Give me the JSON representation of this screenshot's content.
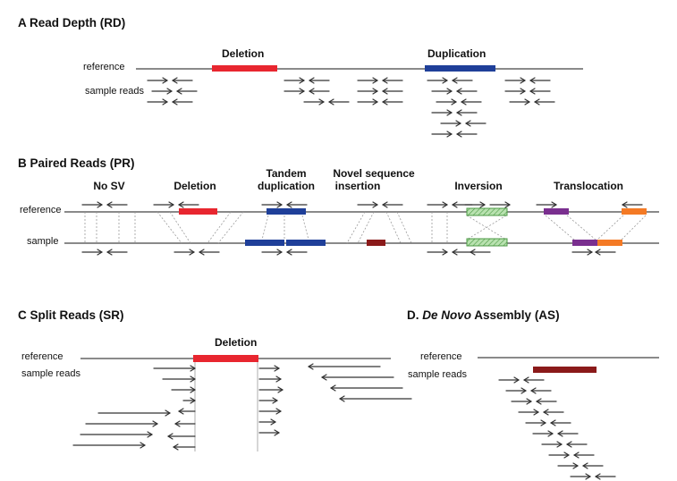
{
  "colors": {
    "deletion": "#e8262f",
    "duplication": "#1f3f99",
    "novel": "#8b1a1a",
    "inversion_fill": "#b9e2b0",
    "inversion_stroke": "#4c9a45",
    "translocation_a": "#7a2f8f",
    "translocation_b": "#f47a25",
    "assembly": "#8b1a1a",
    "line": "#444444",
    "arrow": "#333333"
  },
  "panel_a": {
    "title": "A  Read Depth (RD)",
    "reference_label": "reference",
    "sample_label": "sample reads",
    "deletion_label": "Deletion",
    "duplication_label": "Duplication"
  },
  "panel_b": {
    "title": "B  Paired Reads (PR)",
    "reference_label": "reference",
    "sample_label": "sample",
    "categories": [
      {
        "lines": [
          "No SV"
        ]
      },
      {
        "lines": [
          "Deletion"
        ]
      },
      {
        "lines": [
          "Tandem",
          "duplication"
        ]
      },
      {
        "lines": [
          "Novel sequence",
          "insertion"
        ]
      },
      {
        "lines": [
          "Inversion"
        ]
      },
      {
        "lines": [
          "Translocation"
        ]
      }
    ]
  },
  "panel_c": {
    "title": "C  Split Reads (SR)",
    "reference_label": "reference",
    "sample_label": "sample reads",
    "deletion_label": "Deletion"
  },
  "panel_d": {
    "title_prefix": "D. ",
    "title_italic": "De Novo",
    "title_suffix": " Assembly (AS)",
    "reference_label": "reference",
    "sample_label": "sample reads"
  }
}
